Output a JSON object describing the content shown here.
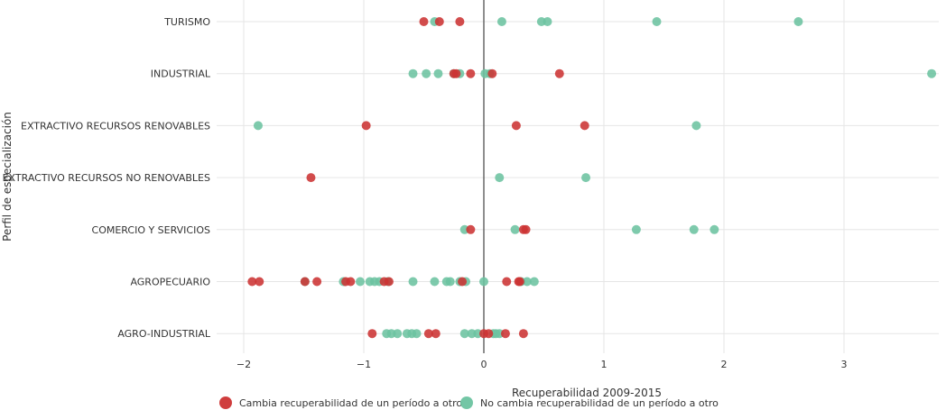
{
  "chart_data": {
    "type": "scatter",
    "title": "",
    "xlabel": "Recuperabilidad 2009-2015",
    "ylabel": "Perfil de especialización",
    "xlim": [
      -2.5,
      3.8
    ],
    "x_ticks": [
      -2,
      -1,
      0,
      1,
      2,
      3
    ],
    "x_tick_labels": [
      "−2",
      "−1",
      "0",
      "1",
      "2",
      "3"
    ],
    "categories": [
      "TURISMO",
      "INDUSTRIAL",
      "EXTRACTIVO RECURSOS RENOVABLES",
      "EXTRACTIVO RECURSOS NO RENOVABLES",
      "COMERCIO Y SERVICIOS",
      "AGROPECUARIO",
      "AGRO-INDUSTRIAL"
    ],
    "grid": true,
    "legend_position": "bottom",
    "series": [
      {
        "name": "Cambia recuperabilidad de un período a otro",
        "color": "#cc3333",
        "points": {
          "TURISMO": [
            -0.5,
            -0.37,
            -0.2
          ],
          "INDUSTRIAL": [
            -0.25,
            -0.23,
            -0.11,
            0.07,
            0.63
          ],
          "EXTRACTIVO RECURSOS RENOVABLES": [
            -0.98,
            0.27,
            0.84
          ],
          "EXTRACTIVO RECURSOS NO RENOVABLES": [
            -1.44
          ],
          "COMERCIO Y SERVICIOS": [
            -0.11,
            0.33,
            0.35
          ],
          "AGROPECUARIO": [
            -1.93,
            -1.87,
            -1.39,
            -1.49,
            -1.15,
            -1.11,
            -0.83,
            -0.79,
            -0.18,
            0.19,
            0.29,
            0.3
          ],
          "AGRO-INDUSTRIAL": [
            -0.93,
            -0.46,
            -0.4,
            0.0,
            0.04,
            0.18,
            0.33
          ]
        }
      },
      {
        "name": "No cambia recuperabilidad de un período a otro",
        "color": "#6cc3a0",
        "points": {
          "TURISMO": [
            -0.41,
            0.15,
            0.48,
            0.53,
            1.44,
            2.62
          ],
          "INDUSTRIAL": [
            -0.59,
            -0.48,
            -0.38,
            -0.25,
            -0.2,
            0.01,
            0.05,
            3.73
          ],
          "EXTRACTIVO RECURSOS RENOVABLES": [
            -1.88,
            1.77
          ],
          "EXTRACTIVO RECURSOS NO RENOVABLES": [
            0.13,
            0.85
          ],
          "COMERCIO Y SERVICIOS": [
            -0.16,
            0.26,
            1.27,
            1.75,
            1.92
          ],
          "AGROPECUARIO": [
            -1.49,
            -1.17,
            -1.03,
            -0.95,
            -0.91,
            -0.87,
            -0.8,
            -0.59,
            -0.41,
            -0.31,
            -0.28,
            -0.2,
            -0.15,
            0.0,
            0.31,
            0.36,
            0.42
          ],
          "AGRO-INDUSTRIAL": [
            -0.81,
            -0.77,
            -0.72,
            -0.64,
            -0.6,
            -0.56,
            -0.16,
            -0.1,
            -0.05,
            0.08,
            0.1,
            0.13
          ]
        }
      }
    ]
  }
}
